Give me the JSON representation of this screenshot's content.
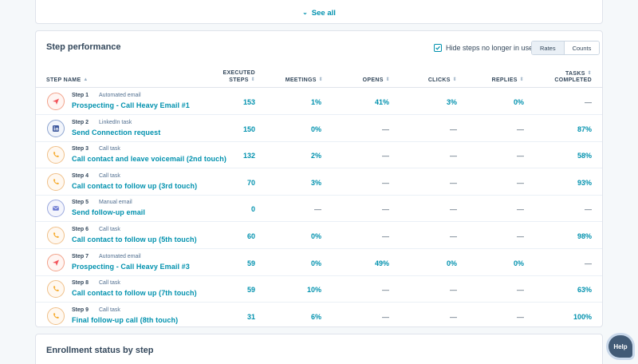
{
  "top_card": {
    "see_all_label": "See all"
  },
  "performance": {
    "title": "Step performance",
    "hide_steps_label": "Hide steps no longer in use",
    "hide_steps_checked": true,
    "toggle": {
      "rates_label": "Rates",
      "counts_label": "Counts",
      "active": "Rates"
    },
    "columns": {
      "step_name": "STEP NAME",
      "executed_1": "EXECUTED",
      "executed_2": "STEPS",
      "meetings": "MEETINGS",
      "opens": "OPENS",
      "clicks": "CLICKS",
      "replies": "REPLIES",
      "tasks_1": "TASKS",
      "tasks_2": "COMPLETED"
    },
    "rows": [
      {
        "step": "Step 1",
        "type": "Automated email",
        "icon": "email-send-icon",
        "name": "Prospecting - Call Heavy Email #1",
        "executed": "153",
        "meetings": "1%",
        "opens": "41%",
        "clicks": "3%",
        "replies": "0%",
        "tasks": "—"
      },
      {
        "step": "Step 2",
        "type": "LinkedIn task",
        "icon": "linkedin-icon",
        "name": "Send Connection request",
        "executed": "150",
        "meetings": "0%",
        "opens": "—",
        "clicks": "—",
        "replies": "—",
        "tasks": "87%"
      },
      {
        "step": "Step 3",
        "type": "Call task",
        "icon": "phone-icon",
        "name": "Call contact and leave voicemail (2nd touch)",
        "executed": "132",
        "meetings": "2%",
        "opens": "—",
        "clicks": "—",
        "replies": "—",
        "tasks": "58%"
      },
      {
        "step": "Step 4",
        "type": "Call task",
        "icon": "phone-icon",
        "name": "Call contact to follow up (3rd touch)",
        "executed": "70",
        "meetings": "3%",
        "opens": "—",
        "clicks": "—",
        "replies": "—",
        "tasks": "93%"
      },
      {
        "step": "Step 5",
        "type": "Manual email",
        "icon": "envelope-icon",
        "name": "Send follow-up email",
        "executed": "0",
        "meetings": "—",
        "opens": "—",
        "clicks": "—",
        "replies": "—",
        "tasks": "—"
      },
      {
        "step": "Step 6",
        "type": "Call task",
        "icon": "phone-icon",
        "name": "Call contact to follow up (5th touch)",
        "executed": "60",
        "meetings": "0%",
        "opens": "—",
        "clicks": "—",
        "replies": "—",
        "tasks": "98%"
      },
      {
        "step": "Step 7",
        "type": "Automated email",
        "icon": "email-send-icon",
        "name": "Prospecting - Call Heavy Email #3",
        "executed": "59",
        "meetings": "0%",
        "opens": "49%",
        "clicks": "0%",
        "replies": "0%",
        "tasks": "—"
      },
      {
        "step": "Step 8",
        "type": "Call task",
        "icon": "phone-icon",
        "name": "Call contact to follow up (7th touch)",
        "executed": "59",
        "meetings": "10%",
        "opens": "—",
        "clicks": "—",
        "replies": "—",
        "tasks": "63%"
      },
      {
        "step": "Step 9",
        "type": "Call task",
        "icon": "phone-icon",
        "name": "Final follow-up call (8th touch)",
        "executed": "31",
        "meetings": "6%",
        "opens": "—",
        "clicks": "—",
        "replies": "—",
        "tasks": "100%"
      }
    ]
  },
  "enrollment": {
    "title": "Enrollment status by step"
  },
  "help_label": "Help",
  "colors": {
    "accent": "#0091ae",
    "text": "#33475b",
    "help_bg": "#425b76"
  }
}
